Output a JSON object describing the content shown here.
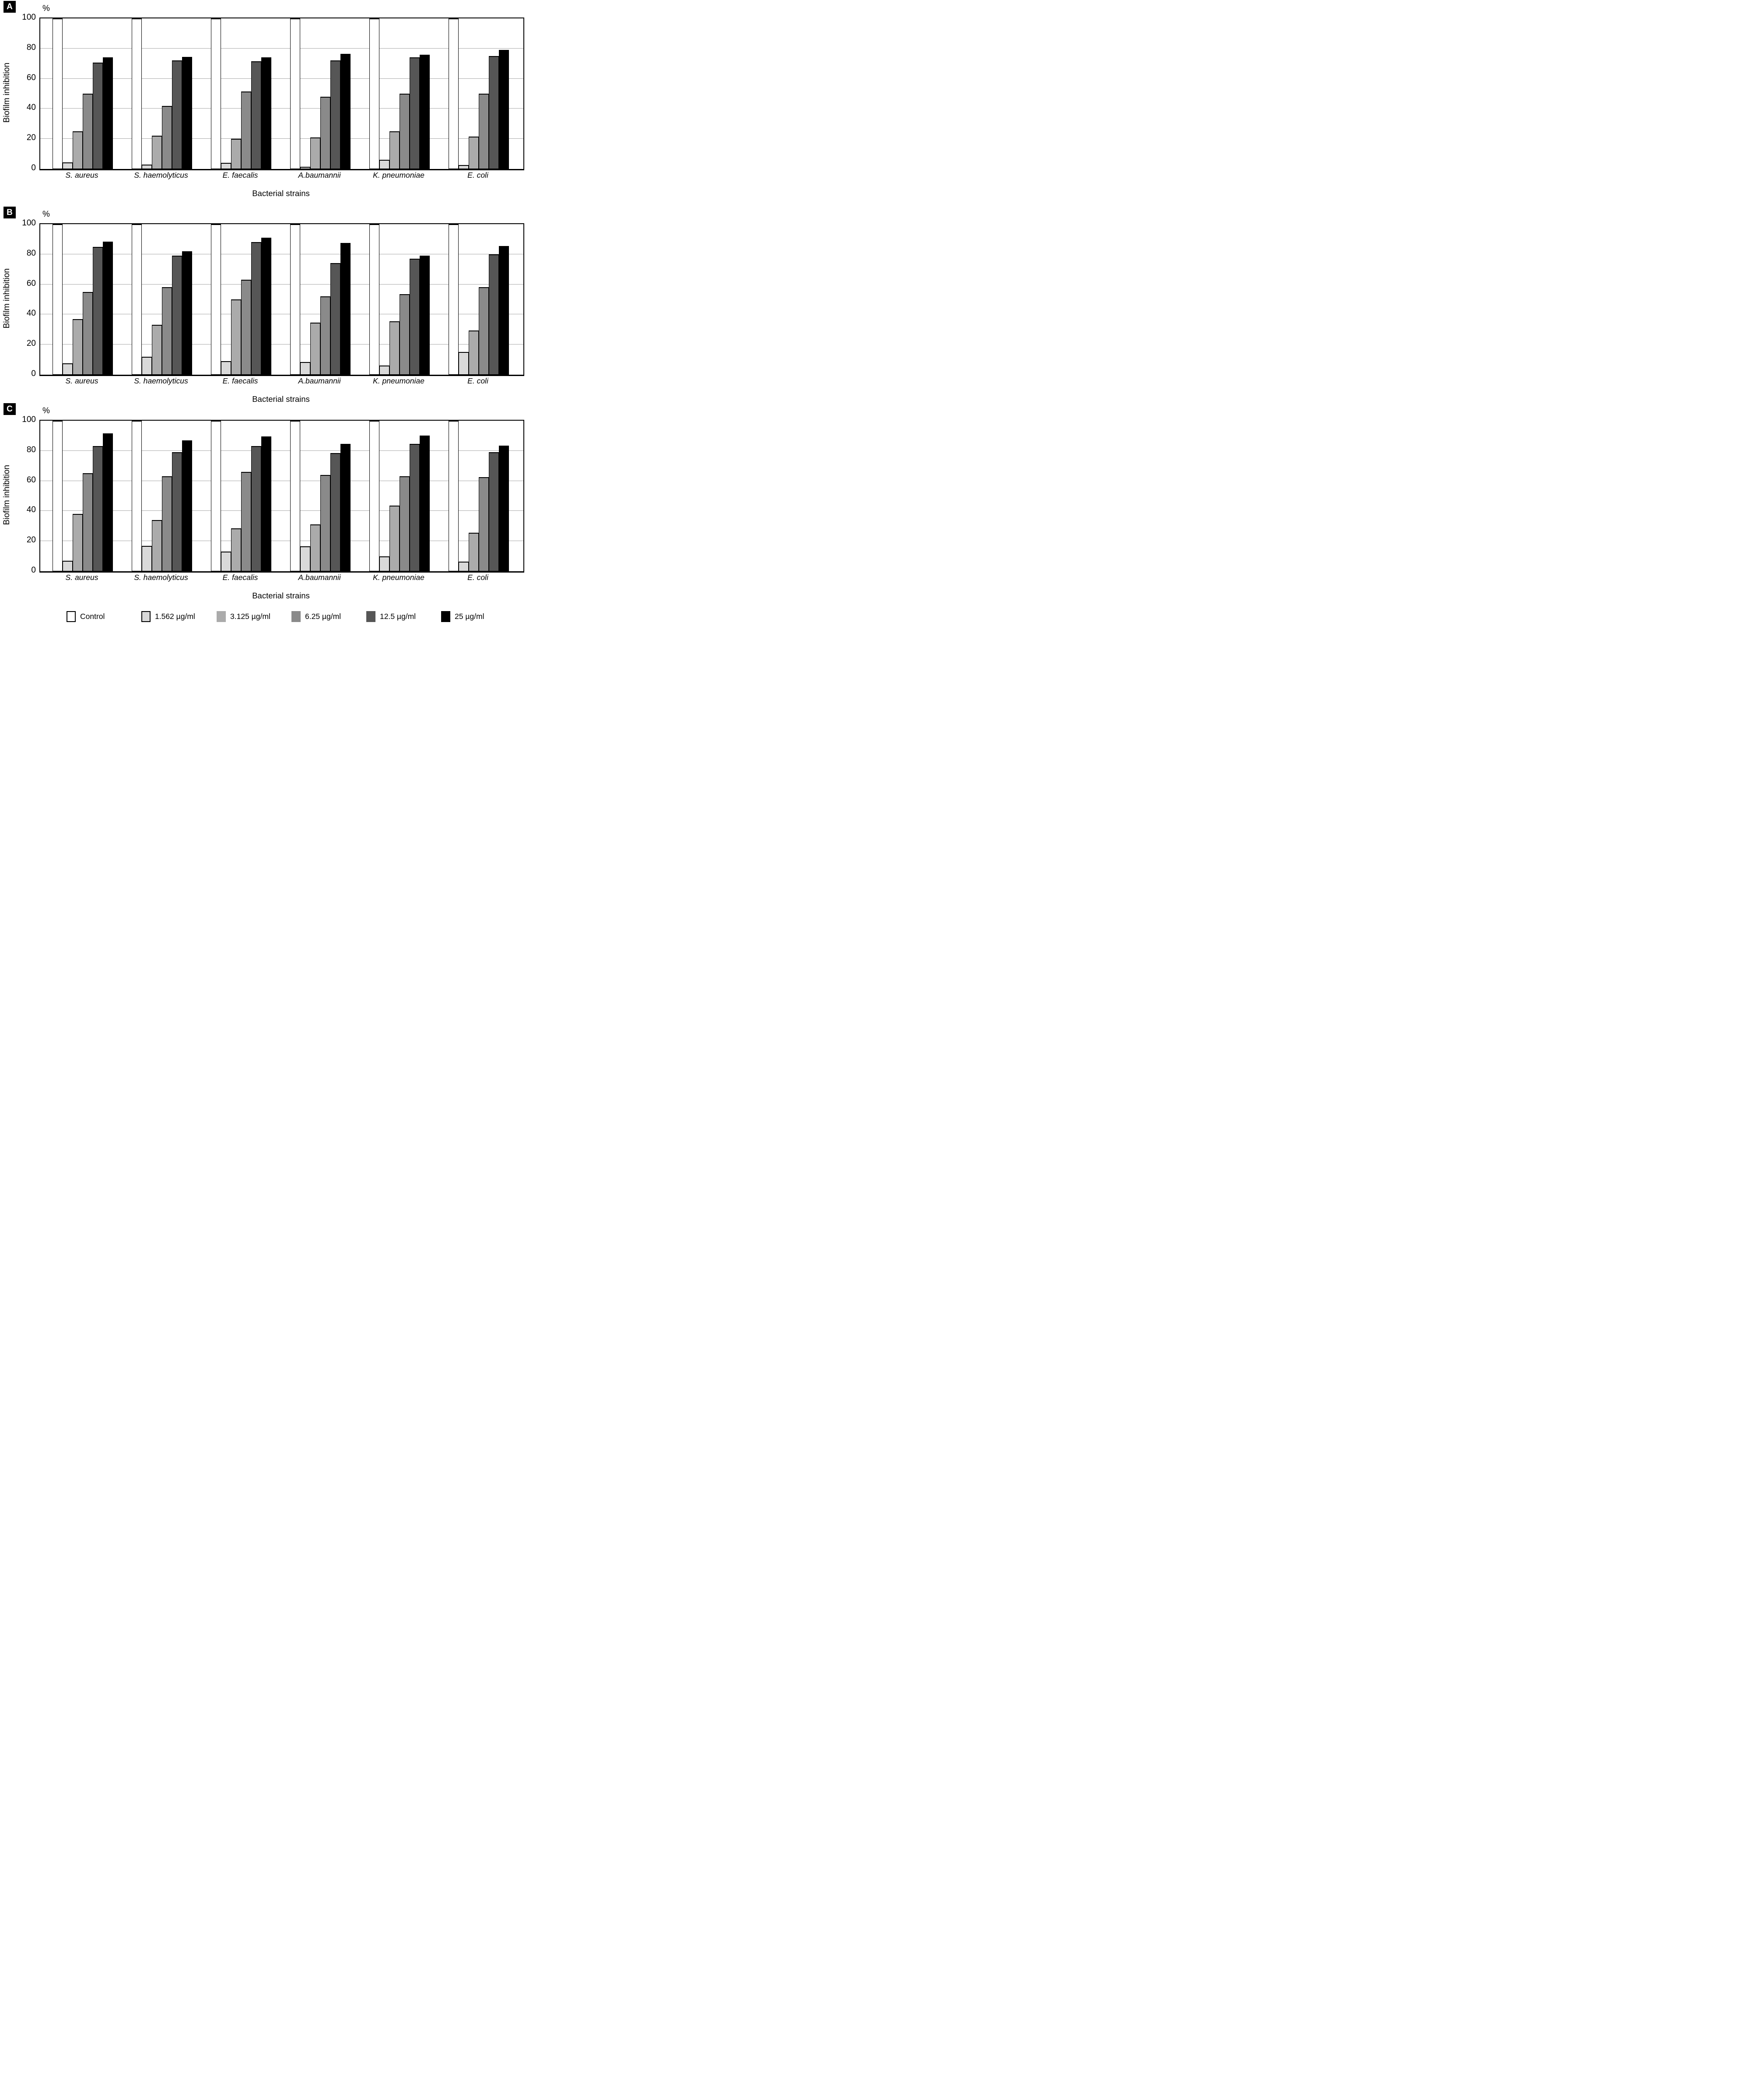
{
  "figure": {
    "panels": [
      {
        "letter": "A"
      },
      {
        "letter": "B"
      },
      {
        "letter": "C"
      }
    ],
    "legend": {
      "position": "bottom",
      "items": [
        {
          "label": "Control",
          "color": "#ffffff",
          "outlined": true
        },
        {
          "label": "1.562 µg/ml",
          "color": "#d9d9d9",
          "outlined": true
        },
        {
          "label": "3.125 µg/ml",
          "color": "#ababab",
          "outlined": false
        },
        {
          "label": "6.25 µg/ml",
          "color": "#8a8a8a",
          "outlined": false
        },
        {
          "label": "12.5 µg/ml",
          "color": "#565656",
          "outlined": false
        },
        {
          "label": "25 µg/ml",
          "color": "#000000",
          "outlined": false
        }
      ]
    }
  },
  "chart_data": [
    {
      "type": "bar",
      "panel": "A",
      "title": "",
      "xlabel": "Bacterial strains",
      "ylabel": "Biofilm inhibition",
      "y_unit": "%",
      "ylim": [
        0,
        100
      ],
      "yticks": [
        0,
        20,
        40,
        60,
        80,
        100
      ],
      "grid": true,
      "categories": [
        "S. aureus",
        "S. haemolyticus",
        "E. faecalis",
        "A.baumannii",
        "K. pneumoniae",
        "E. coli"
      ],
      "series": [
        {
          "name": "Control",
          "color": "#ffffff",
          "values": [
            100,
            100,
            100,
            100,
            100,
            100
          ]
        },
        {
          "name": "1.562 µg/ml",
          "color": "#d9d9d9",
          "values": [
            4.5,
            3,
            4,
            1.5,
            6,
            2.5
          ]
        },
        {
          "name": "3.125 µg/ml",
          "color": "#ababab",
          "values": [
            25,
            22,
            20,
            21,
            25,
            21.5
          ]
        },
        {
          "name": "6.25 µg/ml",
          "color": "#8a8a8a",
          "values": [
            50,
            42,
            51.5,
            48,
            50,
            50
          ]
        },
        {
          "name": "12.5 µg/ml",
          "color": "#565656",
          "values": [
            70.5,
            72,
            71.5,
            72,
            74,
            75
          ]
        },
        {
          "name": "25 µg/ml",
          "color": "#000000",
          "values": [
            74,
            74.5,
            74,
            76.5,
            76,
            79
          ]
        }
      ]
    },
    {
      "type": "bar",
      "panel": "B",
      "title": "",
      "xlabel": "Bacterial strains",
      "ylabel": "Biofilm inhibition",
      "y_unit": "%",
      "ylim": [
        0,
        100
      ],
      "yticks": [
        0,
        20,
        40,
        60,
        80,
        100
      ],
      "grid": true,
      "categories": [
        "S. aureus",
        "S. haemolyticus",
        "E. faecalis",
        "A.baumannii",
        "K. pneumoniae",
        "E. coli"
      ],
      "series": [
        {
          "name": "Control",
          "color": "#ffffff",
          "values": [
            100,
            100,
            100,
            100,
            100,
            100
          ]
        },
        {
          "name": "1.562 µg/ml",
          "color": "#d9d9d9",
          "values": [
            7.5,
            12,
            9,
            8.5,
            6,
            15
          ]
        },
        {
          "name": "3.125 µg/ml",
          "color": "#ababab",
          "values": [
            37,
            33,
            50,
            34.5,
            35.5,
            29.5
          ]
        },
        {
          "name": "6.25 µg/ml",
          "color": "#8a8a8a",
          "values": [
            55,
            58,
            63,
            52,
            53.5,
            58
          ]
        },
        {
          "name": "12.5 µg/ml",
          "color": "#565656",
          "values": [
            85,
            79,
            88,
            74,
            77,
            80
          ]
        },
        {
          "name": "25 µg/ml",
          "color": "#000000",
          "values": [
            88.5,
            82,
            91,
            87.5,
            79,
            85.5
          ]
        }
      ]
    },
    {
      "type": "bar",
      "panel": "C",
      "title": "",
      "xlabel": "Bacterial strains",
      "ylabel": "Biofilm inhibition",
      "y_unit": "%",
      "ylim": [
        0,
        100
      ],
      "yticks": [
        0,
        20,
        40,
        60,
        80,
        100
      ],
      "grid": true,
      "categories": [
        "S. aureus",
        "S. haemolyticus",
        "E. faecalis",
        "A.baumannii",
        "K. pneumoniae",
        "E. coli"
      ],
      "series": [
        {
          "name": "Control",
          "color": "#ffffff",
          "values": [
            100,
            100,
            100,
            100,
            100,
            100
          ]
        },
        {
          "name": "1.562 µg/ml",
          "color": "#d9d9d9",
          "values": [
            7,
            17,
            13,
            16.5,
            10,
            6.5
          ]
        },
        {
          "name": "3.125 µg/ml",
          "color": "#ababab",
          "values": [
            38,
            34,
            28.5,
            31,
            43.5,
            25.5
          ]
        },
        {
          "name": "6.25 µg/ml",
          "color": "#8a8a8a",
          "values": [
            65,
            63,
            66,
            64,
            63,
            62.5
          ]
        },
        {
          "name": "12.5 µg/ml",
          "color": "#565656",
          "values": [
            83,
            79,
            83,
            78.5,
            84.5,
            79
          ]
        },
        {
          "name": "25 µg/ml",
          "color": "#000000",
          "values": [
            91.5,
            87,
            89.5,
            84.5,
            90,
            83.5
          ]
        }
      ]
    }
  ]
}
